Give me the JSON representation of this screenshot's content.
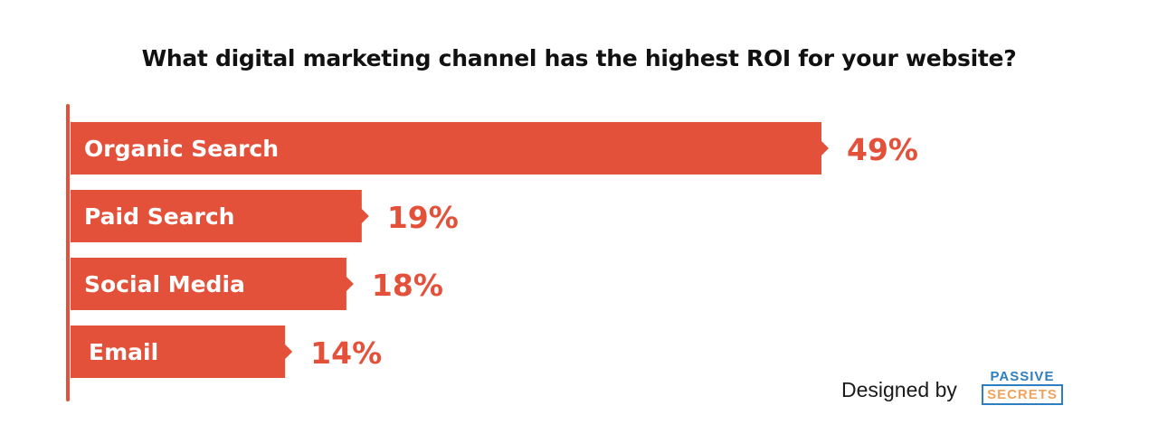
{
  "chart_data": {
    "type": "bar",
    "orientation": "horizontal",
    "title": "What digital marketing channel has the highest ROI for your website?",
    "categories": [
      "Organic Search",
      "Paid Search",
      "Social Media",
      "Email"
    ],
    "values": [
      49,
      19,
      18,
      14
    ],
    "value_labels": [
      "49%",
      "19%",
      "18%",
      "14%"
    ],
    "unit": "%",
    "xlim": [
      0,
      49
    ],
    "grid": false,
    "legend": "none"
  },
  "footer": {
    "credit_text": "Designed by",
    "logo_line1": "PASSIVE",
    "logo_line2": "SECRETS"
  },
  "colors": {
    "bar": "#E4513A",
    "value_label": "#E4513A",
    "axis": "#E4513A",
    "logo_blue": "#2E7FC1",
    "logo_orange": "#F0A35C"
  }
}
